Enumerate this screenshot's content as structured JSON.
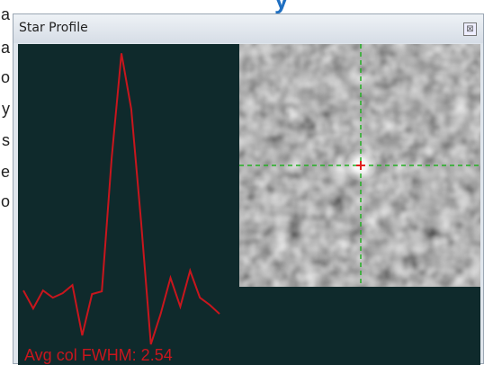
{
  "side_text": [
    "a",
    "a",
    "o",
    "y",
    "s",
    "e",
    "o"
  ],
  "heading_fragment": "y",
  "window": {
    "title": "Star Profile",
    "close": "⊠"
  },
  "profile": {
    "values": [
      78,
      58,
      78,
      70,
      75,
      84,
      28,
      74,
      77,
      225,
      342,
      280,
      155,
      18,
      52,
      92,
      60,
      100,
      70,
      62,
      52
    ],
    "color": "#c8161d",
    "label": "Avg col FWHM: 2.54"
  }
}
